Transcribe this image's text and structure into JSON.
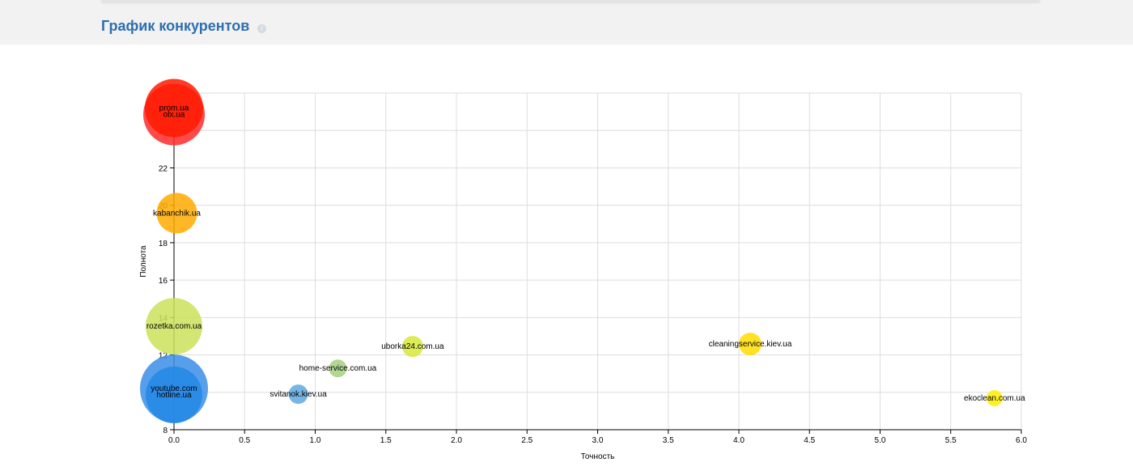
{
  "header": {
    "title": "График конкурентов"
  },
  "chart_data": {
    "type": "bubble",
    "xlabel": "Точность",
    "ylabel": "Полнота",
    "xlim": [
      0,
      6
    ],
    "ylim": [
      8,
      26
    ],
    "xticks": [
      {
        "value": 0,
        "label": "0.0"
      },
      0.5,
      {
        "value": 1,
        "label": "1.0"
      },
      1.5,
      {
        "value": 2,
        "label": "2.0"
      },
      2.5,
      {
        "value": 3,
        "label": "3.0"
      },
      3.5,
      {
        "value": 4,
        "label": "4.0"
      },
      4.5,
      {
        "value": 5,
        "label": "5.0"
      },
      5.5,
      {
        "value": 6,
        "label": "6.0"
      }
    ],
    "yticks": [
      8,
      10,
      12,
      14,
      16,
      18,
      20,
      22,
      24
    ],
    "grid": true,
    "series": [
      {
        "name": "olx.ua",
        "color": "#ff2a2a",
        "x": [
          0
        ],
        "values": [
          24.85
        ],
        "sizes": [
          38
        ]
      },
      {
        "name": "prom.ua",
        "color": "#ff1a00",
        "x": [
          0
        ],
        "values": [
          25.2
        ],
        "sizes": [
          36
        ]
      },
      {
        "name": "kabanchik.ua",
        "color": "#ffaa00",
        "x": [
          0.02
        ],
        "values": [
          19.58
        ],
        "sizes": [
          25
        ]
      },
      {
        "name": "rozetka.com.ua",
        "color": "#cbe05a",
        "x": [
          0
        ],
        "values": [
          13.53
        ],
        "sizes": [
          35
        ]
      },
      {
        "name": "youtube.com",
        "color": "#3a8ee6",
        "x": [
          0
        ],
        "values": [
          10.2
        ],
        "sizes": [
          42
        ]
      },
      {
        "name": "hotline.ua",
        "color": "#2288e6",
        "x": [
          0
        ],
        "values": [
          9.86
        ],
        "sizes": [
          35
        ]
      },
      {
        "name": "svitanok.kiev.ua",
        "color": "#5fa8e0",
        "x": [
          0.88
        ],
        "values": [
          9.9
        ],
        "sizes": [
          12
        ]
      },
      {
        "name": "home-service.com.ua",
        "color": "#a6d080",
        "x": [
          1.16
        ],
        "values": [
          11.28
        ],
        "sizes": [
          11
        ]
      },
      {
        "name": "uborka24.com.ua",
        "color": "#d6e83a",
        "x": [
          1.69
        ],
        "values": [
          12.45
        ],
        "sizes": [
          13
        ]
      },
      {
        "name": "cleaningservice.kiev.ua",
        "color": "#ffdd00",
        "x": [
          4.08
        ],
        "values": [
          12.58
        ],
        "sizes": [
          14
        ]
      },
      {
        "name": "ekoclean.com.ua",
        "color": "#ffee00",
        "x": [
          5.81
        ],
        "values": [
          9.69
        ],
        "sizes": [
          10
        ]
      }
    ]
  }
}
